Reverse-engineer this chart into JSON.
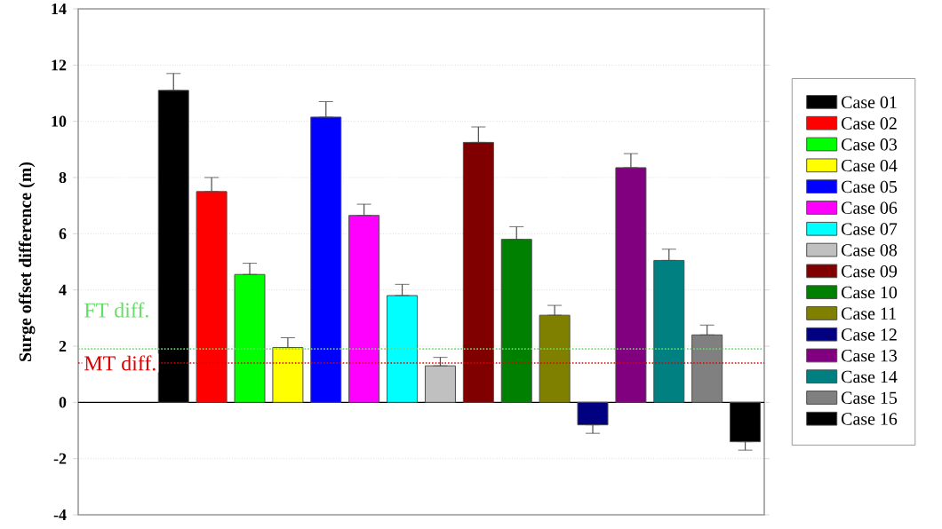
{
  "chart_data": {
    "type": "bar",
    "ylabel": "Surge offset difference (m)",
    "categories": [
      null,
      null,
      null,
      null,
      null,
      null,
      null,
      null,
      null,
      null,
      null,
      null,
      null,
      null,
      null,
      null,
      null,
      null
    ],
    "series": [
      {
        "name": "Case 01",
        "color": "#000000",
        "values": [
          null,
          null,
          11.1,
          null,
          null,
          null,
          null,
          null,
          null,
          null,
          null,
          null,
          null,
          null,
          null,
          null,
          null,
          null
        ],
        "errors": [
          null,
          null,
          [
            11.1,
            11.7
          ],
          null,
          null,
          null,
          null,
          null,
          null,
          null,
          null,
          null,
          null,
          null,
          null,
          null,
          null,
          null
        ]
      },
      {
        "name": "Case 02",
        "color": "#ff0000",
        "values": [
          null,
          null,
          null,
          7.5,
          null,
          null,
          null,
          null,
          null,
          null,
          null,
          null,
          null,
          null,
          null,
          null,
          null,
          null
        ],
        "errors": [
          null,
          null,
          null,
          [
            7.5,
            8.0
          ],
          null,
          null,
          null,
          null,
          null,
          null,
          null,
          null,
          null,
          null,
          null,
          null,
          null,
          null
        ]
      },
      {
        "name": "Case 03",
        "color": "#00ff00",
        "values": [
          null,
          null,
          null,
          null,
          4.55,
          null,
          null,
          null,
          null,
          null,
          null,
          null,
          null,
          null,
          null,
          null,
          null,
          null
        ],
        "errors": [
          null,
          null,
          null,
          null,
          [
            4.55,
            4.95
          ],
          null,
          null,
          null,
          null,
          null,
          null,
          null,
          null,
          null,
          null,
          null,
          null,
          null
        ]
      },
      {
        "name": "Case 04",
        "color": "#ffff00",
        "values": [
          null,
          null,
          null,
          null,
          null,
          1.95,
          null,
          null,
          null,
          null,
          null,
          null,
          null,
          null,
          null,
          null,
          null,
          null
        ],
        "errors": [
          null,
          null,
          null,
          null,
          null,
          [
            1.95,
            2.3
          ],
          null,
          null,
          null,
          null,
          null,
          null,
          null,
          null,
          null,
          null,
          null,
          null
        ]
      },
      {
        "name": "Case 05",
        "color": "#0000ff",
        "values": [
          null,
          null,
          null,
          null,
          null,
          null,
          10.15,
          null,
          null,
          null,
          null,
          null,
          null,
          null,
          null,
          null,
          null,
          null
        ],
        "errors": [
          null,
          null,
          null,
          null,
          null,
          null,
          [
            10.15,
            10.7
          ],
          null,
          null,
          null,
          null,
          null,
          null,
          null,
          null,
          null,
          null,
          null
        ]
      },
      {
        "name": "Case 06",
        "color": "#ff00ff",
        "values": [
          null,
          null,
          null,
          null,
          null,
          null,
          null,
          6.65,
          null,
          null,
          null,
          null,
          null,
          null,
          null,
          null,
          null,
          null
        ],
        "errors": [
          null,
          null,
          null,
          null,
          null,
          null,
          null,
          [
            6.65,
            7.05
          ],
          null,
          null,
          null,
          null,
          null,
          null,
          null,
          null,
          null,
          null
        ]
      },
      {
        "name": "Case 07",
        "color": "#00ffff",
        "values": [
          null,
          null,
          null,
          null,
          null,
          null,
          null,
          null,
          3.8,
          null,
          null,
          null,
          null,
          null,
          null,
          null,
          null,
          null
        ],
        "errors": [
          null,
          null,
          null,
          null,
          null,
          null,
          null,
          null,
          [
            3.8,
            4.2
          ],
          null,
          null,
          null,
          null,
          null,
          null,
          null,
          null,
          null
        ]
      },
      {
        "name": "Case 08",
        "color": "#c0c0c0",
        "values": [
          null,
          null,
          null,
          null,
          null,
          null,
          null,
          null,
          null,
          1.3,
          null,
          null,
          null,
          null,
          null,
          null,
          null,
          null
        ],
        "errors": [
          null,
          null,
          null,
          null,
          null,
          null,
          null,
          null,
          null,
          [
            1.3,
            1.6
          ],
          null,
          null,
          null,
          null,
          null,
          null,
          null,
          null
        ]
      },
      {
        "name": "Case 09",
        "color": "#800000",
        "values": [
          null,
          null,
          null,
          null,
          null,
          null,
          null,
          null,
          null,
          null,
          9.25,
          null,
          null,
          null,
          null,
          null,
          null,
          null
        ],
        "errors": [
          null,
          null,
          null,
          null,
          null,
          null,
          null,
          null,
          null,
          null,
          [
            9.25,
            9.8
          ],
          null,
          null,
          null,
          null,
          null,
          null,
          null
        ]
      },
      {
        "name": "Case 10",
        "color": "#008000",
        "values": [
          null,
          null,
          null,
          null,
          null,
          null,
          null,
          null,
          null,
          null,
          null,
          5.8,
          null,
          null,
          null,
          null,
          null,
          null
        ],
        "errors": [
          null,
          null,
          null,
          null,
          null,
          null,
          null,
          null,
          null,
          null,
          null,
          [
            5.8,
            6.25
          ],
          null,
          null,
          null,
          null,
          null,
          null
        ]
      },
      {
        "name": "Case 11",
        "color": "#808000",
        "values": [
          null,
          null,
          null,
          null,
          null,
          null,
          null,
          null,
          null,
          null,
          null,
          null,
          3.1,
          null,
          null,
          null,
          null,
          null
        ],
        "errors": [
          null,
          null,
          null,
          null,
          null,
          null,
          null,
          null,
          null,
          null,
          null,
          null,
          [
            3.1,
            3.45
          ],
          null,
          null,
          null,
          null,
          null
        ]
      },
      {
        "name": "Case 12",
        "color": "#000080",
        "values": [
          null,
          null,
          null,
          null,
          null,
          null,
          null,
          null,
          null,
          null,
          null,
          null,
          null,
          -0.8,
          null,
          null,
          null,
          null
        ],
        "errors": [
          null,
          null,
          null,
          null,
          null,
          null,
          null,
          null,
          null,
          null,
          null,
          null,
          null,
          [
            -1.1,
            -0.8
          ],
          null,
          null,
          null,
          null
        ]
      },
      {
        "name": "Case 13",
        "color": "#800080",
        "values": [
          null,
          null,
          null,
          null,
          null,
          null,
          null,
          null,
          null,
          null,
          null,
          null,
          null,
          null,
          8.35,
          null,
          null,
          null
        ],
        "errors": [
          null,
          null,
          null,
          null,
          null,
          null,
          null,
          null,
          null,
          null,
          null,
          null,
          null,
          null,
          [
            8.35,
            8.85
          ],
          null,
          null,
          null
        ]
      },
      {
        "name": "Case 14",
        "color": "#008080",
        "values": [
          null,
          null,
          null,
          null,
          null,
          null,
          null,
          null,
          null,
          null,
          null,
          null,
          null,
          null,
          null,
          5.05,
          null,
          null
        ],
        "errors": [
          null,
          null,
          null,
          null,
          null,
          null,
          null,
          null,
          null,
          null,
          null,
          null,
          null,
          null,
          null,
          [
            5.05,
            5.45
          ],
          null,
          null
        ]
      },
      {
        "name": "Case 15",
        "color": "#808080",
        "values": [
          null,
          null,
          null,
          null,
          null,
          null,
          null,
          null,
          null,
          null,
          null,
          null,
          null,
          null,
          null,
          null,
          2.4,
          null
        ],
        "errors": [
          null,
          null,
          null,
          null,
          null,
          null,
          null,
          null,
          null,
          null,
          null,
          null,
          null,
          null,
          null,
          null,
          [
            2.4,
            2.75
          ],
          null
        ]
      },
      {
        "name": "Case 16",
        "color": "#000000",
        "values": [
          null,
          null,
          null,
          null,
          null,
          null,
          null,
          null,
          null,
          null,
          null,
          null,
          null,
          null,
          null,
          null,
          null,
          -1.4
        ],
        "errors": [
          null,
          null,
          null,
          null,
          null,
          null,
          null,
          null,
          null,
          null,
          null,
          null,
          null,
          null,
          null,
          null,
          null,
          [
            -1.7,
            -1.4
          ]
        ]
      }
    ],
    "ylim": [
      -4,
      14
    ],
    "yticks": [
      -4,
      -2,
      0,
      2,
      4,
      6,
      8,
      10,
      12,
      14
    ],
    "ref_lines": [
      {
        "axis": "y",
        "value": 1.9,
        "label": "FT diff.",
        "color": "#66dd66",
        "line_style": "dotted"
      },
      {
        "axis": "y",
        "value": 1.4,
        "label": "MT diff.",
        "color": "#dd0000",
        "line_style": "dotted"
      }
    ],
    "grid": "y",
    "legend": "right",
    "tick_labels": "y"
  }
}
